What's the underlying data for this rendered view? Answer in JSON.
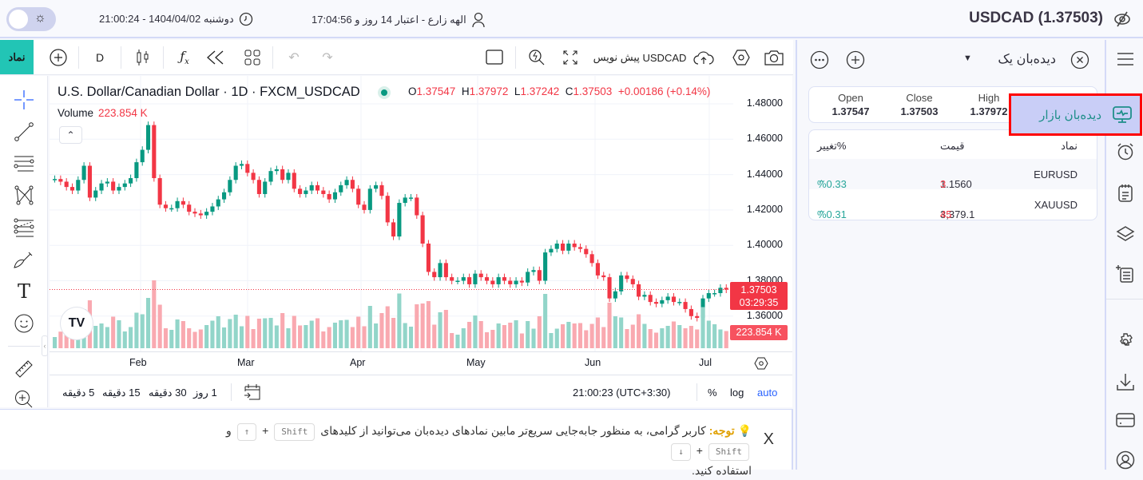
{
  "topbar": {
    "symbol_title": "USDCAD (1.37503)",
    "user_info": "الهه زارع - اعتبار 14 روز و 17:04:56",
    "datetime": "دوشنبه 1404/04/02 - 21:00:24",
    "theme_toggle": "light"
  },
  "toolbar": {
    "symbol_button": "نماد",
    "interval": "D",
    "symbol_name": "USDCAD",
    "draft_label": "پیش نویس"
  },
  "chart": {
    "title": "U.S. Dollar/Canadian Dollar · 1D · FXCM_USDCAD",
    "ohlc": {
      "o_label": "O",
      "o": "1.37547",
      "h_label": "H",
      "h": "1.37972",
      "l_label": "L",
      "l": "1.37242",
      "c_label": "C",
      "c": "1.37503",
      "change": "+0.00186 (+0.14%)"
    },
    "volume_label": "Volume",
    "volume_value": "223.854 K",
    "price_tag": "1.37503",
    "countdown": "03:29:35",
    "volume_tag": "223.854 K",
    "y_ticks": [
      "1.48000",
      "1.46000",
      "1.44000",
      "1.42000",
      "1.40000",
      "1.38000",
      "1.36000"
    ],
    "x_ticks": [
      "Feb",
      "Mar",
      "Apr",
      "May",
      "Jun",
      "Jul"
    ],
    "timeframes": [
      "5 دقیقه",
      "15 دقیقه",
      "30 دقیقه",
      "1 روز"
    ],
    "clock": "21:00:23 (UTC+3:30)",
    "scale_percent": "%",
    "scale_log": "log",
    "scale_auto": "auto"
  },
  "chart_data": {
    "type": "candlestick",
    "title": "U.S. Dollar/Canadian Dollar · 1D · FXCM_USDCAD",
    "ylim": [
      1.355,
      1.485
    ],
    "x_ticks": [
      "Feb",
      "Mar",
      "Apr",
      "May",
      "Jun",
      "Jul"
    ],
    "last": {
      "open": 1.37547,
      "high": 1.37972,
      "low": 1.37242,
      "close": 1.37503,
      "volume": "223.854K"
    },
    "colors": {
      "up": "#089981",
      "down": "#f23645",
      "vol_up": "#92d5c9",
      "vol_down": "#f9a9b0"
    }
  },
  "watchlist": {
    "title": "دیده‌بان یک",
    "ohlc_card": [
      {
        "label": "Open",
        "value": "1.37547"
      },
      {
        "label": "Close",
        "value": "1.37503"
      },
      {
        "label": "High",
        "value": "1.37972"
      }
    ],
    "columns": [
      "نماد",
      "قیمت",
      "تغییر%"
    ],
    "rows": [
      {
        "symbol": "EURUSD",
        "price_main": "1.1560",
        "price_tail": "3",
        "change": "%0.33"
      },
      {
        "symbol": "XAUUSD",
        "price_main": "3,379.1",
        "price_tail": "45",
        "change": "%0.31"
      }
    ]
  },
  "popup": {
    "label": "دیده‌بان بازار"
  },
  "notice": {
    "title": "توجه:",
    "text1": "کاربر گرامی، به منظور جابه‌جایی سریع‌تر مابین نمادهای دیده‌بان می‌توانید از کلیدهای",
    "key_shift": "Shift",
    "key_up": "↑",
    "and": "و",
    "key_down": "↓",
    "text2": "استفاده کنید.",
    "close": "X"
  }
}
